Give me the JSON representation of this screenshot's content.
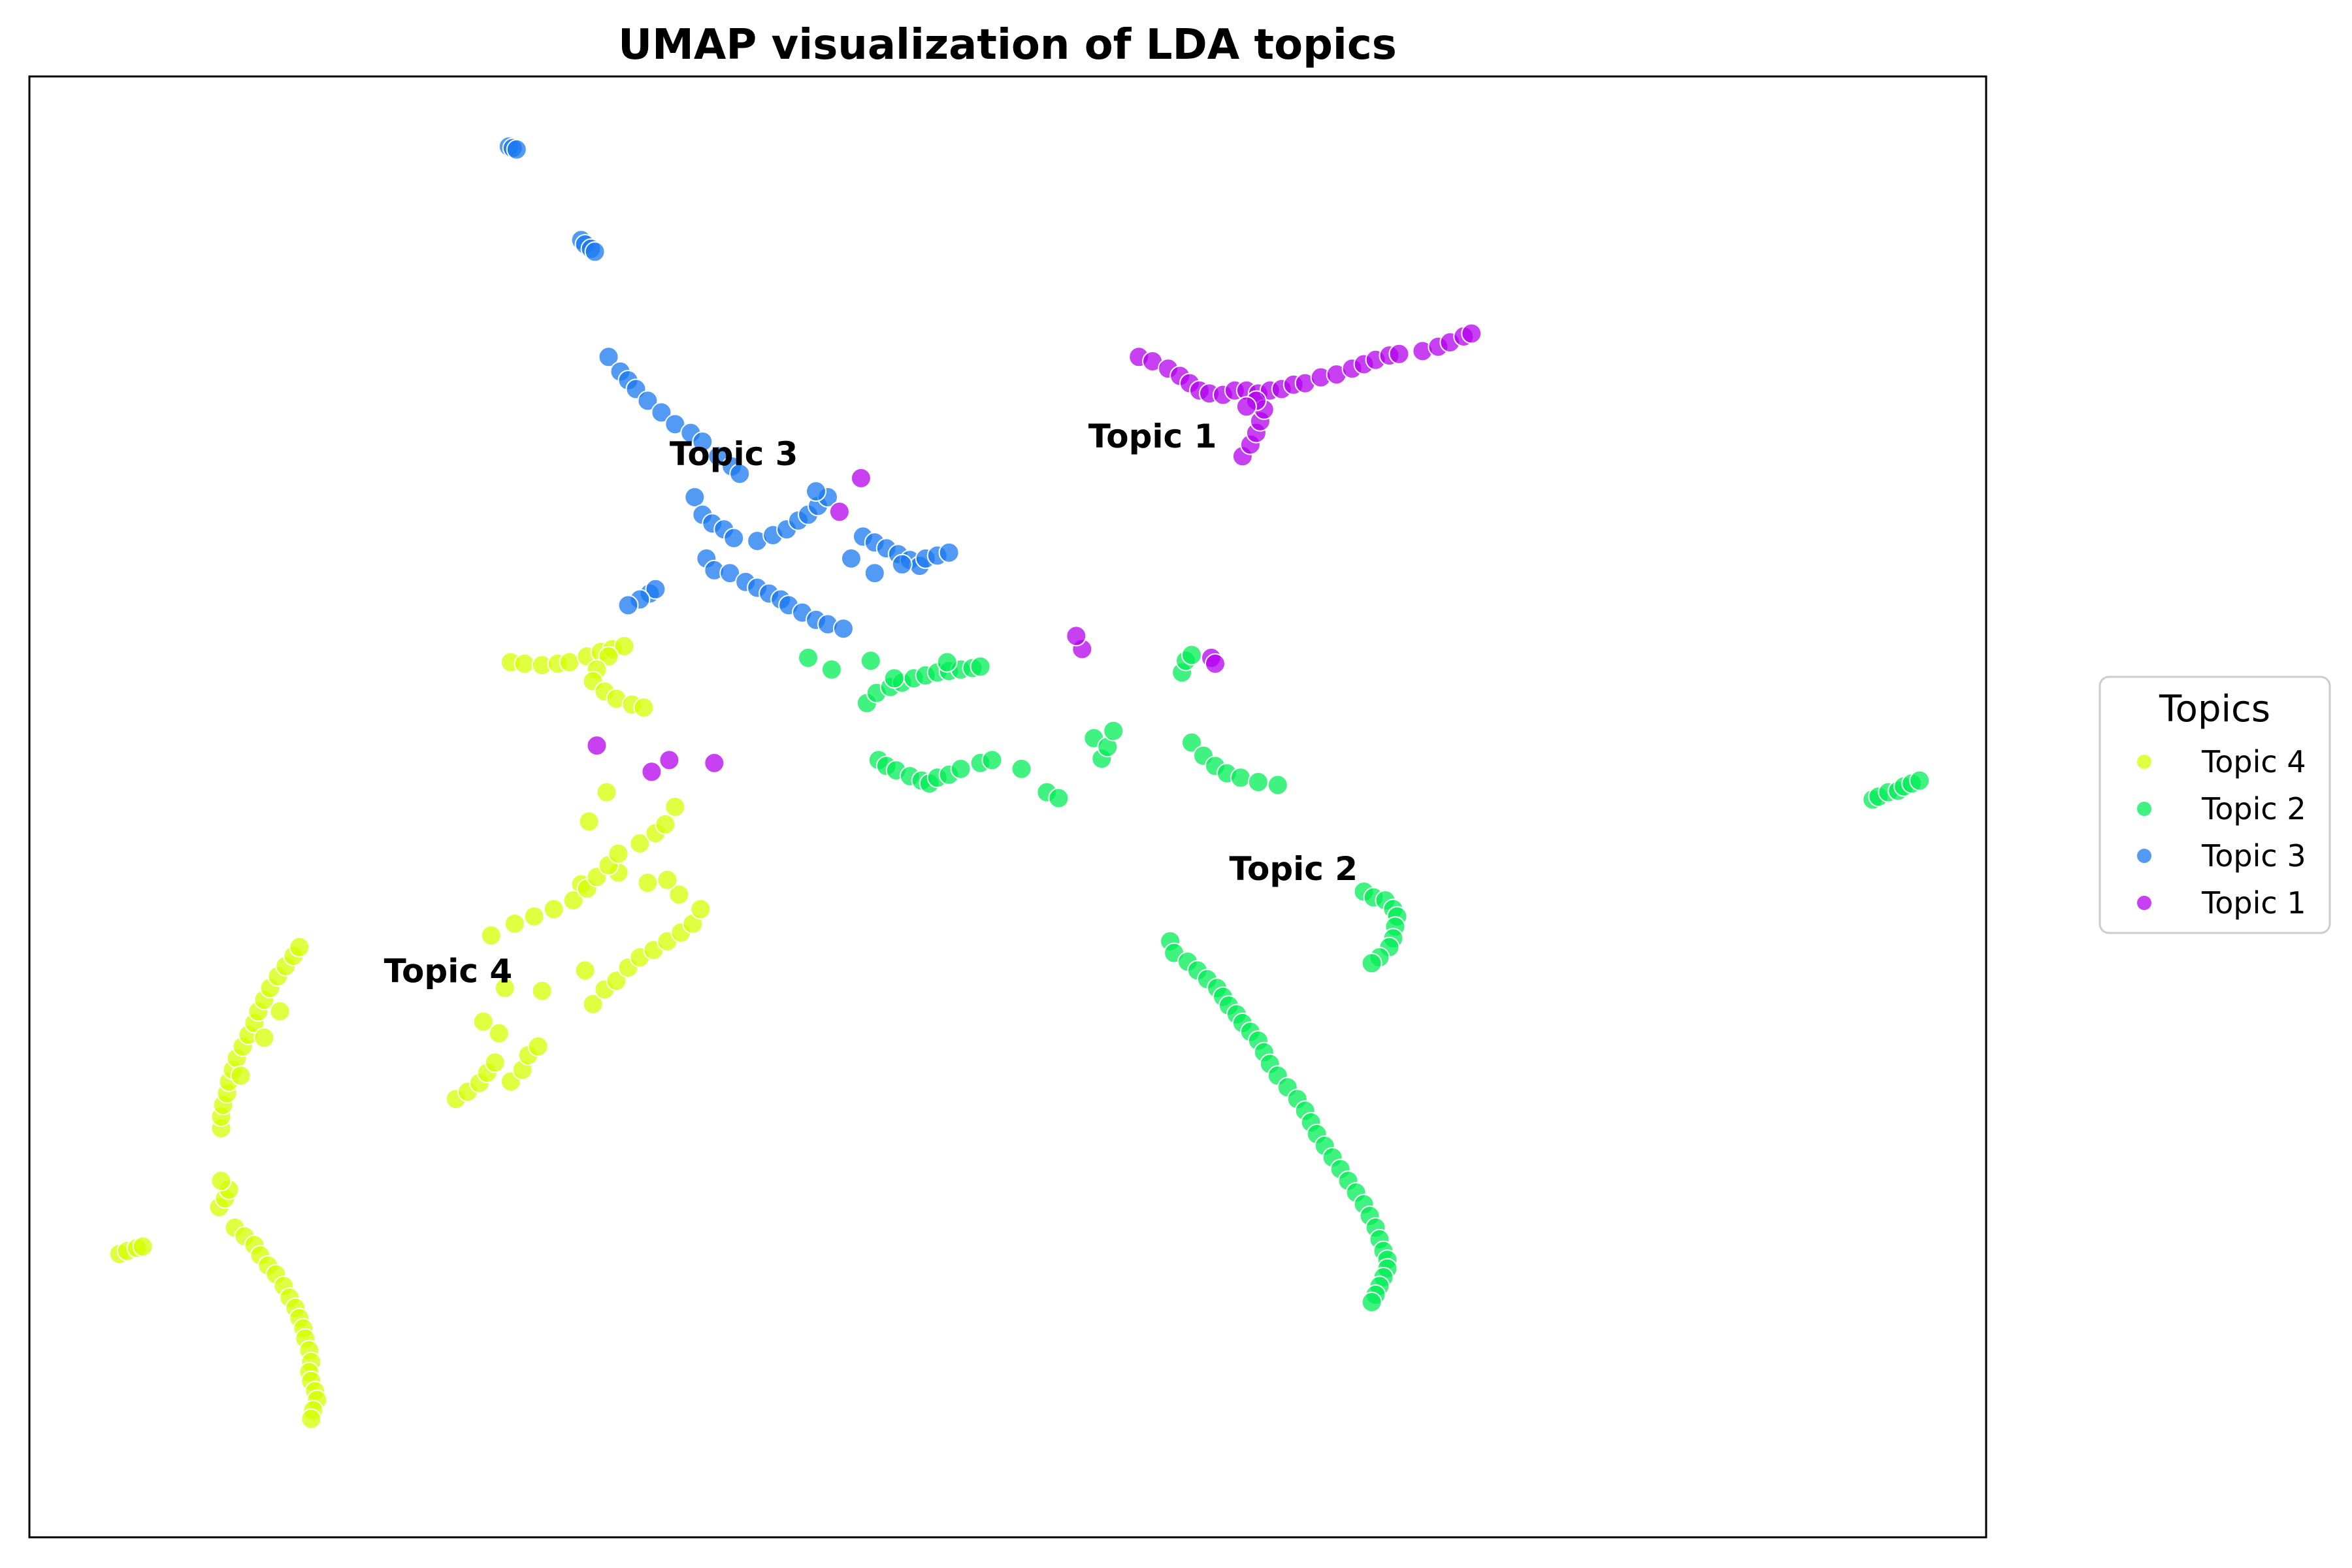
{
  "chart_data": {
    "type": "scatter",
    "title": "UMAP visualization of LDA topics",
    "xlabel": "",
    "ylabel": "",
    "xlim": [
      0,
      1000
    ],
    "ylim": [
      0,
      1000
    ],
    "grid": false,
    "ticks": false,
    "legend": {
      "title": "Topics",
      "placement": "outside-right"
    },
    "colors": {
      "Topic 4": "#d4ff00",
      "Topic 2": "#00ee55",
      "Topic 3": "#1a78f0",
      "Topic 1": "#b400ee"
    },
    "series": [
      {
        "name": "Topic 4",
        "points": [
          [
            46,
            194
          ],
          [
            50,
            196
          ],
          [
            55,
            198
          ],
          [
            58,
            199
          ],
          [
            97,
            226
          ],
          [
            100,
            232
          ],
          [
            102,
            238
          ],
          [
            98,
            244
          ],
          [
            105,
            212
          ],
          [
            110,
            206
          ],
          [
            115,
            200
          ],
          [
            118,
            193
          ],
          [
            122,
            186
          ],
          [
            126,
            180
          ],
          [
            130,
            172
          ],
          [
            133,
            164
          ],
          [
            136,
            157
          ],
          [
            138,
            150
          ],
          [
            140,
            143
          ],
          [
            141,
            136
          ],
          [
            143,
            128
          ],
          [
            144,
            120
          ],
          [
            143,
            113
          ],
          [
            144,
            107
          ],
          [
            146,
            100
          ],
          [
            147,
            94
          ],
          [
            145,
            87
          ],
          [
            144,
            81
          ],
          [
            98,
            280
          ],
          [
            98,
            288
          ],
          [
            99,
            296
          ],
          [
            101,
            304
          ],
          [
            102,
            312
          ],
          [
            104,
            320
          ],
          [
            106,
            328
          ],
          [
            109,
            336
          ],
          [
            112,
            344
          ],
          [
            115,
            352
          ],
          [
            117,
            360
          ],
          [
            120,
            368
          ],
          [
            123,
            376
          ],
          [
            127,
            384
          ],
          [
            131,
            391
          ],
          [
            135,
            398
          ],
          [
            138,
            404
          ],
          [
            120,
            342
          ],
          [
            128,
            360
          ],
          [
            108,
            316
          ],
          [
            218,
            300
          ],
          [
            224,
            305
          ],
          [
            230,
            311
          ],
          [
            234,
            318
          ],
          [
            238,
            325
          ],
          [
            246,
            312
          ],
          [
            252,
            320
          ],
          [
            255,
            330
          ],
          [
            260,
            336
          ],
          [
            240,
            345
          ],
          [
            232,
            353
          ],
          [
            243,
            376
          ],
          [
            262,
            374
          ],
          [
            284,
            388
          ],
          [
            288,
            365
          ],
          [
            294,
            375
          ],
          [
            300,
            381
          ],
          [
            306,
            390
          ],
          [
            312,
            397
          ],
          [
            319,
            402
          ],
          [
            326,
            408
          ],
          [
            333,
            414
          ],
          [
            339,
            420
          ],
          [
            343,
            430
          ],
          [
            332,
            440
          ],
          [
            326,
            450
          ],
          [
            316,
            448
          ],
          [
            301,
            455
          ],
          [
            282,
            447
          ],
          [
            236,
            412
          ],
          [
            248,
            420
          ],
          [
            258,
            425
          ],
          [
            268,
            430
          ],
          [
            278,
            436
          ],
          [
            285,
            444
          ],
          [
            290,
            452
          ],
          [
            296,
            460
          ],
          [
            301,
            468
          ],
          [
            312,
            475
          ],
          [
            320,
            482
          ],
          [
            325,
            488
          ],
          [
            330,
            500
          ],
          [
            286,
            490
          ],
          [
            295,
            510
          ],
          [
            246,
            599
          ],
          [
            253,
            598
          ],
          [
            262,
            597
          ],
          [
            270,
            598
          ],
          [
            276,
            599
          ],
          [
            285,
            603
          ],
          [
            292,
            606
          ],
          [
            298,
            608
          ],
          [
            304,
            610
          ],
          [
            296,
            603
          ],
          [
            290,
            594
          ],
          [
            288,
            586
          ],
          [
            294,
            579
          ],
          [
            300,
            574
          ],
          [
            308,
            570
          ],
          [
            314,
            568
          ]
        ]
      },
      {
        "name": "Topic 2",
        "points": [
          [
            428,
            571
          ],
          [
            433,
            578
          ],
          [
            440,
            582
          ],
          [
            446,
            585
          ],
          [
            452,
            588
          ],
          [
            458,
            590
          ],
          [
            464,
            592
          ],
          [
            470,
            593
          ],
          [
            476,
            594
          ],
          [
            482,
            595
          ],
          [
            486,
            596
          ],
          [
            430,
            600
          ],
          [
            410,
            594
          ],
          [
            442,
            588
          ],
          [
            469,
            599
          ],
          [
            398,
            602
          ],
          [
            434,
            532
          ],
          [
            438,
            528
          ],
          [
            443,
            525
          ],
          [
            450,
            521
          ],
          [
            456,
            518
          ],
          [
            460,
            516
          ],
          [
            464,
            520
          ],
          [
            470,
            522
          ],
          [
            476,
            526
          ],
          [
            486,
            530
          ],
          [
            492,
            532
          ],
          [
            507,
            526
          ],
          [
            520,
            510
          ],
          [
            526,
            506
          ],
          [
            544,
            547
          ],
          [
            548,
            533
          ],
          [
            551,
            541
          ],
          [
            554,
            552
          ],
          [
            594,
            544
          ],
          [
            600,
            535
          ],
          [
            606,
            528
          ],
          [
            612,
            523
          ],
          [
            619,
            520
          ],
          [
            628,
            517
          ],
          [
            638,
            515
          ],
          [
            583,
            408
          ],
          [
            585,
            400
          ],
          [
            592,
            394
          ],
          [
            597,
            388
          ],
          [
            602,
            382
          ],
          [
            607,
            376
          ],
          [
            610,
            370
          ],
          [
            613,
            364
          ],
          [
            617,
            358
          ],
          [
            620,
            352
          ],
          [
            624,
            346
          ],
          [
            628,
            340
          ],
          [
            631,
            332
          ],
          [
            634,
            324
          ],
          [
            638,
            316
          ],
          [
            643,
            308
          ],
          [
            648,
            300
          ],
          [
            652,
            292
          ],
          [
            655,
            284
          ],
          [
            658,
            276
          ],
          [
            662,
            268
          ],
          [
            666,
            260
          ],
          [
            670,
            252
          ],
          [
            674,
            244
          ],
          [
            678,
            236
          ],
          [
            682,
            228
          ],
          [
            685,
            220
          ],
          [
            688,
            212
          ],
          [
            690,
            204
          ],
          [
            692,
            196
          ],
          [
            694,
            190
          ],
          [
            694,
            184
          ],
          [
            692,
            178
          ],
          [
            690,
            172
          ],
          [
            688,
            166
          ],
          [
            686,
            161
          ],
          [
            682,
            442
          ],
          [
            687,
            438
          ],
          [
            693,
            436
          ],
          [
            697,
            430
          ],
          [
            699,
            425
          ],
          [
            698,
            418
          ],
          [
            697,
            410
          ],
          [
            695,
            404
          ],
          [
            690,
            397
          ],
          [
            686,
            393
          ],
          [
            942,
            505
          ],
          [
            945,
            507
          ],
          [
            950,
            510
          ],
          [
            955,
            511
          ],
          [
            958,
            514
          ],
          [
            962,
            516
          ],
          [
            966,
            518
          ],
          [
            589,
            592
          ],
          [
            591,
            600
          ],
          [
            594,
            604
          ]
        ]
      },
      {
        "name": "Topic 3",
        "points": [
          [
            245,
            952
          ],
          [
            247,
            951
          ],
          [
            249,
            950
          ],
          [
            282,
            888
          ],
          [
            284,
            885
          ],
          [
            287,
            882
          ],
          [
            289,
            880
          ],
          [
            296,
            808
          ],
          [
            302,
            798
          ],
          [
            306,
            792
          ],
          [
            310,
            786
          ],
          [
            316,
            778
          ],
          [
            323,
            770
          ],
          [
            330,
            762
          ],
          [
            338,
            756
          ],
          [
            344,
            750
          ],
          [
            352,
            740
          ],
          [
            359,
            733
          ],
          [
            363,
            728
          ],
          [
            340,
            712
          ],
          [
            344,
            700
          ],
          [
            349,
            694
          ],
          [
            355,
            690
          ],
          [
            360,
            684
          ],
          [
            346,
            670
          ],
          [
            350,
            662
          ],
          [
            358,
            660
          ],
          [
            366,
            654
          ],
          [
            372,
            650
          ],
          [
            378,
            646
          ],
          [
            384,
            642
          ],
          [
            388,
            638
          ],
          [
            395,
            633
          ],
          [
            402,
            628
          ],
          [
            408,
            625
          ],
          [
            416,
            622
          ],
          [
            372,
            682
          ],
          [
            380,
            686
          ],
          [
            387,
            690
          ],
          [
            393,
            696
          ],
          [
            398,
            700
          ],
          [
            403,
            706
          ],
          [
            408,
            712
          ],
          [
            402,
            716
          ],
          [
            426,
            685
          ],
          [
            432,
            681
          ],
          [
            438,
            677
          ],
          [
            444,
            673
          ],
          [
            450,
            669
          ],
          [
            455,
            665
          ],
          [
            458,
            670
          ],
          [
            464,
            672
          ],
          [
            470,
            674
          ],
          [
            446,
            666
          ],
          [
            432,
            660
          ],
          [
            420,
            670
          ],
          [
            317,
            646
          ],
          [
            320,
            649
          ],
          [
            312,
            642
          ],
          [
            306,
            638
          ]
        ]
      },
      {
        "name": "Topic 1",
        "points": [
          [
            567,
            808
          ],
          [
            574,
            805
          ],
          [
            582,
            800
          ],
          [
            588,
            795
          ],
          [
            593,
            790
          ],
          [
            598,
            785
          ],
          [
            603,
            783
          ],
          [
            610,
            782
          ],
          [
            616,
            785
          ],
          [
            622,
            785
          ],
          [
            628,
            783
          ],
          [
            634,
            785
          ],
          [
            640,
            786
          ],
          [
            646,
            789
          ],
          [
            652,
            790
          ],
          [
            660,
            794
          ],
          [
            668,
            796
          ],
          [
            676,
            800
          ],
          [
            682,
            803
          ],
          [
            688,
            806
          ],
          [
            695,
            809
          ],
          [
            700,
            810
          ],
          [
            712,
            812
          ],
          [
            720,
            815
          ],
          [
            726,
            818
          ],
          [
            733,
            822
          ],
          [
            737,
            824
          ],
          [
            620,
            740
          ],
          [
            624,
            748
          ],
          [
            627,
            756
          ],
          [
            629,
            764
          ],
          [
            631,
            772
          ],
          [
            627,
            778
          ],
          [
            622,
            774
          ],
          [
            414,
            702
          ],
          [
            425,
            725
          ],
          [
            538,
            608
          ],
          [
            535,
            617
          ],
          [
            604,
            602
          ],
          [
            606,
            598
          ],
          [
            290,
            542
          ],
          [
            318,
            524
          ],
          [
            327,
            532
          ],
          [
            350,
            530
          ]
        ]
      }
    ],
    "annotations": [
      {
        "text": "Topic 1",
        "x": 574,
        "y": 752
      },
      {
        "text": "Topic 3",
        "x": 360,
        "y": 740
      },
      {
        "text": "Topic 2",
        "x": 646,
        "y": 456
      },
      {
        "text": "Topic 4",
        "x": 214,
        "y": 386
      }
    ]
  }
}
